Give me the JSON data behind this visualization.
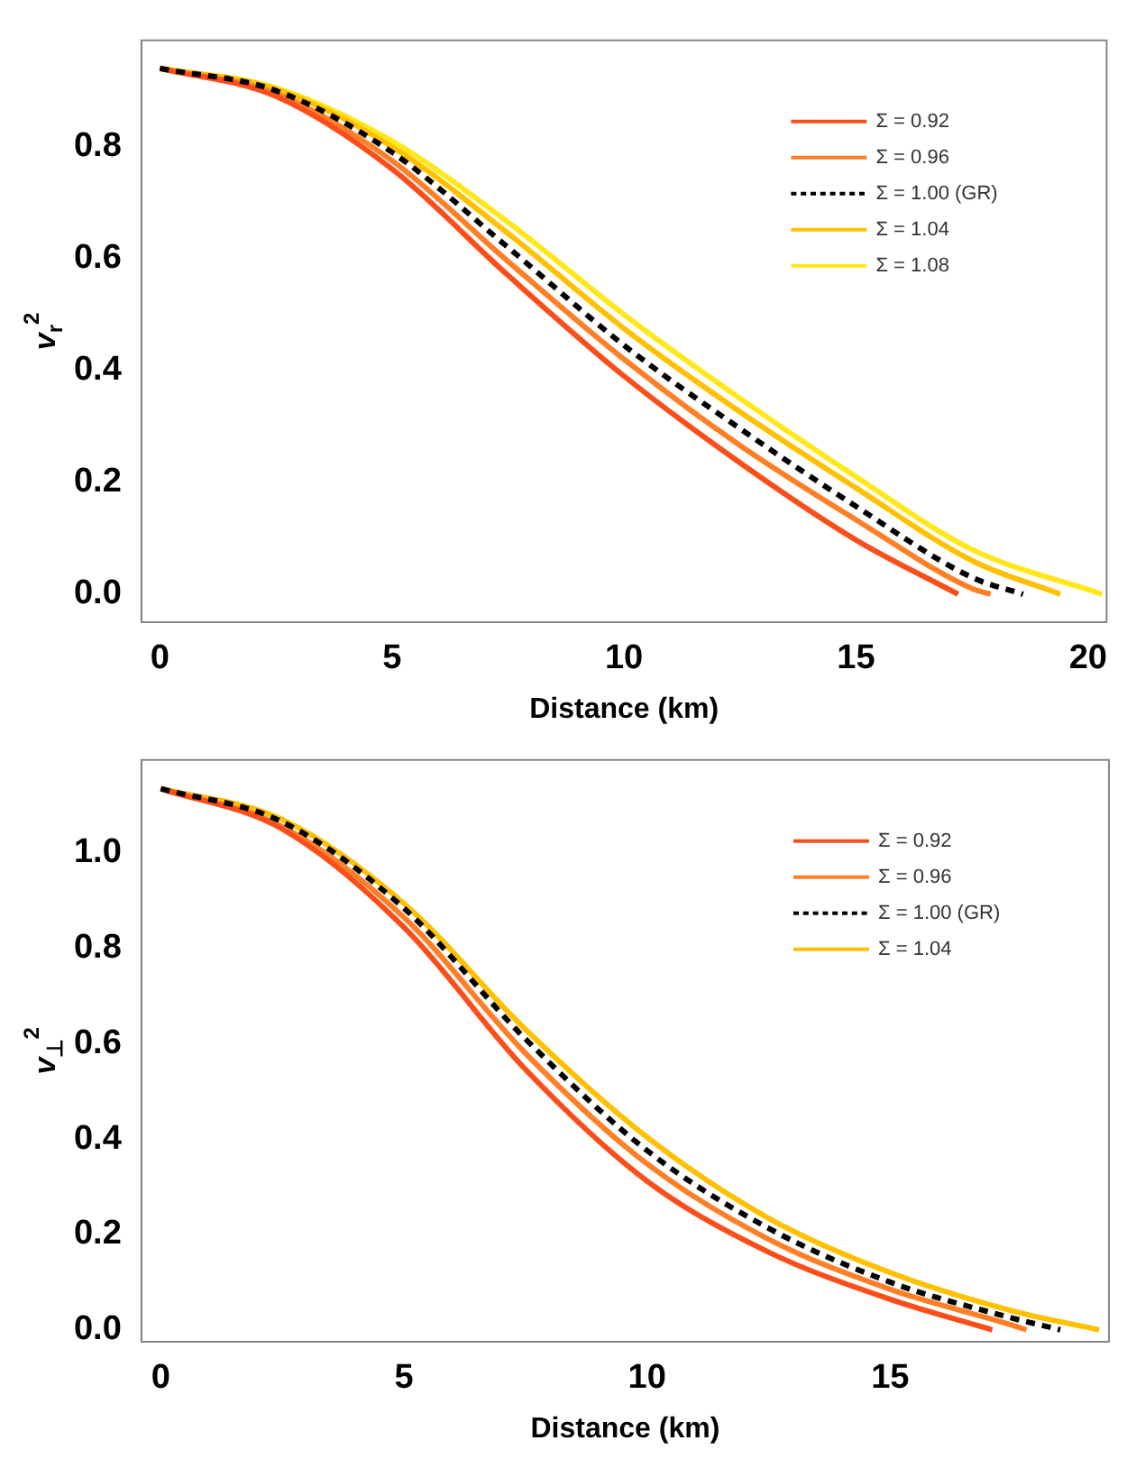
{
  "chart_data": [
    {
      "type": "line",
      "xlabel": "Distance (km)",
      "ylabel": "v$_{r}$$^{2}$",
      "xlim": [
        -0.4,
        20.4
      ],
      "ylim": [
        -0.05,
        0.99
      ],
      "xticks": [
        0,
        5,
        10,
        15,
        20
      ],
      "yticks": [
        {
          "value": 0,
          "label": "0.0"
        },
        {
          "value": 0.2,
          "label": "0.2"
        },
        {
          "value": 0.4,
          "label": "0.4"
        },
        {
          "value": 0.6,
          "label": "0.6"
        },
        {
          "value": 0.8,
          "label": "0.8"
        }
      ],
      "grid": false,
      "legend": "top right",
      "series": [
        {
          "name": "Σ = 0.92",
          "color": "#fc4e1a",
          "line_style": "solid",
          "x": [
            0,
            2.5,
            5,
            7.5,
            10,
            12.5,
            15,
            17.2
          ],
          "values": [
            0.94,
            0.89,
            0.76,
            0.57,
            0.39,
            0.235,
            0.097,
            0
          ]
        },
        {
          "name": "Σ = 0.96",
          "color": "#ff7f27",
          "line_style": "solid",
          "x": [
            0,
            2.5,
            5,
            7.5,
            10,
            12.5,
            15,
            17.5,
            17.9
          ],
          "values": [
            0.94,
            0.895,
            0.775,
            0.595,
            0.42,
            0.266,
            0.133,
            0.01,
            0
          ]
        },
        {
          "name": "Σ = 1.00 (GR)",
          "color": "#000000",
          "line_style": "dashed",
          "x": [
            0,
            2.5,
            5,
            7.5,
            10,
            12.5,
            15,
            17.5,
            18.6
          ],
          "values": [
            0.94,
            0.9,
            0.79,
            0.62,
            0.445,
            0.296,
            0.157,
            0.03,
            0
          ]
        },
        {
          "name": "Σ = 1.04",
          "color": "#ffc000",
          "line_style": "solid",
          "x": [
            0,
            2.5,
            5,
            7.5,
            10,
            12.5,
            15,
            17.5,
            19.4
          ],
          "values": [
            0.94,
            0.903,
            0.8,
            0.645,
            0.475,
            0.326,
            0.19,
            0.06,
            0
          ]
        },
        {
          "name": "Σ = 1.08",
          "color": "#ffe81a",
          "line_style": "solid",
          "x": [
            0,
            2.5,
            5,
            7.5,
            10,
            12.5,
            15,
            17.5,
            20.3
          ],
          "values": [
            0.94,
            0.905,
            0.81,
            0.665,
            0.5,
            0.35,
            0.21,
            0.08,
            0
          ]
        }
      ]
    },
    {
      "type": "line",
      "xlabel": "Distance (km)",
      "ylabel": "v$_{⊥}$$^{2}$",
      "xlim": [
        -0.4,
        19.5
      ],
      "ylim": [
        -0.025,
        1.195
      ],
      "xticks": [
        0,
        5,
        10,
        15
      ],
      "yticks": [
        {
          "value": 0,
          "label": "0.0"
        },
        {
          "value": 0.2,
          "label": "0.2"
        },
        {
          "value": 0.4,
          "label": "0.4"
        },
        {
          "value": 0.6,
          "label": "0.6"
        },
        {
          "value": 0.8,
          "label": "0.8"
        },
        {
          "value": 1,
          "label": "1.0"
        }
      ],
      "grid": false,
      "legend": "top right",
      "series": [
        {
          "name": "Σ = 0.92",
          "color": "#fc4e1a",
          "line_style": "solid",
          "x": [
            0,
            2.5,
            5,
            7.5,
            10,
            12.5,
            15,
            17.1
          ],
          "values": [
            1.135,
            1.05,
            0.844,
            0.546,
            0.312,
            0.163,
            0.064,
            0
          ]
        },
        {
          "name": "Σ = 0.96",
          "color": "#ff7f27",
          "line_style": "solid",
          "x": [
            0,
            2.5,
            5,
            7.5,
            10,
            12.5,
            15,
            17.5,
            17.8
          ],
          "values": [
            1.135,
            1.055,
            0.865,
            0.58,
            0.348,
            0.19,
            0.085,
            0.01,
            0
          ]
        },
        {
          "name": "Σ = 1.00 (GR)",
          "color": "#000000",
          "line_style": "dashed",
          "x": [
            0,
            2.5,
            5,
            7.5,
            10,
            12.5,
            15,
            17.5,
            18.5
          ],
          "values": [
            1.135,
            1.065,
            0.884,
            0.61,
            0.376,
            0.213,
            0.1,
            0.025,
            0
          ]
        },
        {
          "name": "Σ = 1.04",
          "color": "#ffc000",
          "line_style": "solid",
          "x": [
            0,
            2.5,
            5,
            7.5,
            10,
            12.5,
            15,
            17.5,
            19.3
          ],
          "values": [
            1.135,
            1.07,
            0.894,
            0.63,
            0.404,
            0.234,
            0.12,
            0.04,
            0
          ]
        }
      ]
    }
  ]
}
